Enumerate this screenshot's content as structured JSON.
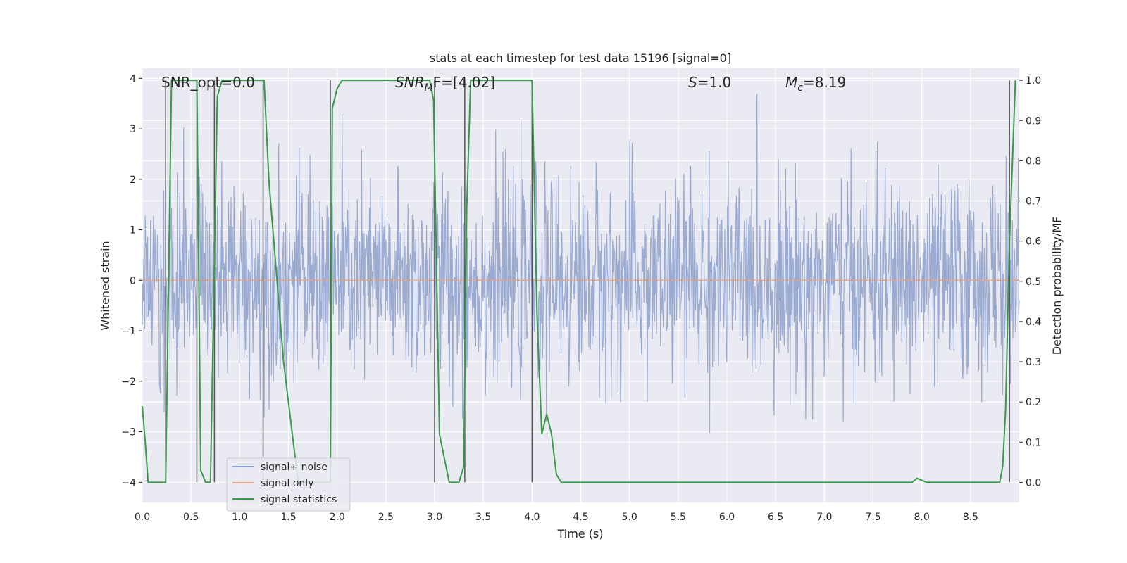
{
  "chart_data": {
    "type": "line",
    "title": "stats at each timestep for test data 15196 [signal=0]",
    "xlabel": "Time (s)",
    "ylabel": "Whitened strain",
    "y2label": "Detection probability/MF",
    "xlim": [
      0.0,
      9.0
    ],
    "ylim": [
      -4.4,
      4.2
    ],
    "y2lim": [
      -0.05,
      1.03
    ],
    "xticks": [
      0.0,
      0.5,
      1.0,
      1.5,
      2.0,
      2.5,
      3.0,
      3.5,
      4.0,
      4.5,
      5.0,
      5.5,
      6.0,
      6.5,
      7.0,
      7.5,
      8.0,
      8.5
    ],
    "xtick_labels": [
      "0.0",
      "0.5",
      "1.0",
      "1.5",
      "2.0",
      "2.5",
      "3.0",
      "3.5",
      "4.0",
      "4.5",
      "5.0",
      "5.5",
      "6.0",
      "6.5",
      "7.0",
      "7.5",
      "8.0",
      "8.5"
    ],
    "yticks": [
      -4,
      -3,
      -2,
      -1,
      0,
      1,
      2,
      3,
      4
    ],
    "ytick_labels": [
      "−4",
      "−3",
      "−2",
      "−1",
      "0",
      "1",
      "2",
      "3",
      "4"
    ],
    "y2ticks": [
      0.0,
      0.1,
      0.2,
      0.3,
      0.4,
      0.5,
      0.6,
      0.7,
      0.8,
      0.9,
      1.0
    ],
    "y2tick_labels": [
      "0.0",
      "0.1",
      "0.2",
      "0.3",
      "0.4",
      "0.5",
      "0.6",
      "0.7",
      "0.8",
      "0.9",
      "1.0"
    ],
    "annotations": {
      "snr_opt": "SNR_opt=0.0",
      "snr_mf_sym": "SNR",
      "snr_mf_sub": "M",
      "snr_mf_rest": "F=[4.02]",
      "s_sym": "S",
      "s_rest": "=1.0",
      "mc_sym": "M",
      "mc_sub": "c",
      "mc_rest": "=8.19"
    },
    "series": [
      {
        "name": "signal+ noise",
        "color": "#8da0cb",
        "style": "noise",
        "amplitude_sigma": 1.0,
        "n_samples": 1800
      },
      {
        "name": "signal only",
        "color": "#e8a27f",
        "values_constant": 0.0
      },
      {
        "name": "signal statistics",
        "color": "#3a9a4a",
        "axis": "right",
        "x": [
          0.0,
          0.03,
          0.06,
          0.1,
          0.2,
          0.24,
          0.3,
          0.5,
          0.56,
          0.6,
          0.65,
          0.7,
          0.77,
          0.82,
          0.9,
          1.0,
          1.25,
          1.3,
          1.45,
          1.6,
          1.8,
          1.93,
          1.95,
          2.0,
          2.05,
          2.1,
          2.4,
          2.8,
          2.95,
          2.99,
          3.05,
          3.15,
          3.25,
          3.3,
          3.33,
          3.37,
          3.4,
          3.5,
          3.75,
          3.95,
          4.0,
          4.05,
          4.1,
          4.15,
          4.2,
          4.25,
          4.3,
          5.0,
          6.0,
          7.0,
          7.6,
          7.9,
          7.95,
          8.05,
          8.2,
          8.5,
          8.8,
          8.83,
          8.86,
          8.9,
          8.96
        ],
        "y": [
          0.19,
          0.1,
          0.0,
          0.0,
          0.0,
          0.0,
          1.0,
          1.0,
          1.0,
          0.03,
          0.0,
          0.0,
          0.96,
          1.0,
          1.0,
          1.0,
          1.0,
          0.75,
          0.3,
          0.0,
          0.0,
          0.0,
          0.93,
          0.98,
          1.0,
          1.0,
          1.0,
          1.0,
          1.0,
          0.95,
          0.12,
          0.0,
          0.0,
          0.04,
          0.68,
          1.0,
          1.0,
          1.0,
          1.0,
          1.0,
          1.0,
          0.42,
          0.12,
          0.17,
          0.12,
          0.02,
          0.0,
          0.0,
          0.0,
          0.0,
          0.0,
          0.0,
          0.01,
          0.0,
          0.0,
          0.0,
          0.0,
          0.04,
          0.18,
          0.6,
          1.0
        ]
      }
    ],
    "vertical_markers_x": [
      0.24,
      0.56,
      0.74,
      1.24,
      1.93,
      3.0,
      3.31,
      4.0,
      8.9
    ],
    "legend": {
      "location": "lower-left",
      "entries": [
        "signal+ noise",
        "signal only",
        "signal statistics"
      ]
    },
    "grid": true
  },
  "colors": {
    "plot_bg": "#eaeaf2",
    "grid": "#ffffff",
    "marker": "#555555"
  }
}
